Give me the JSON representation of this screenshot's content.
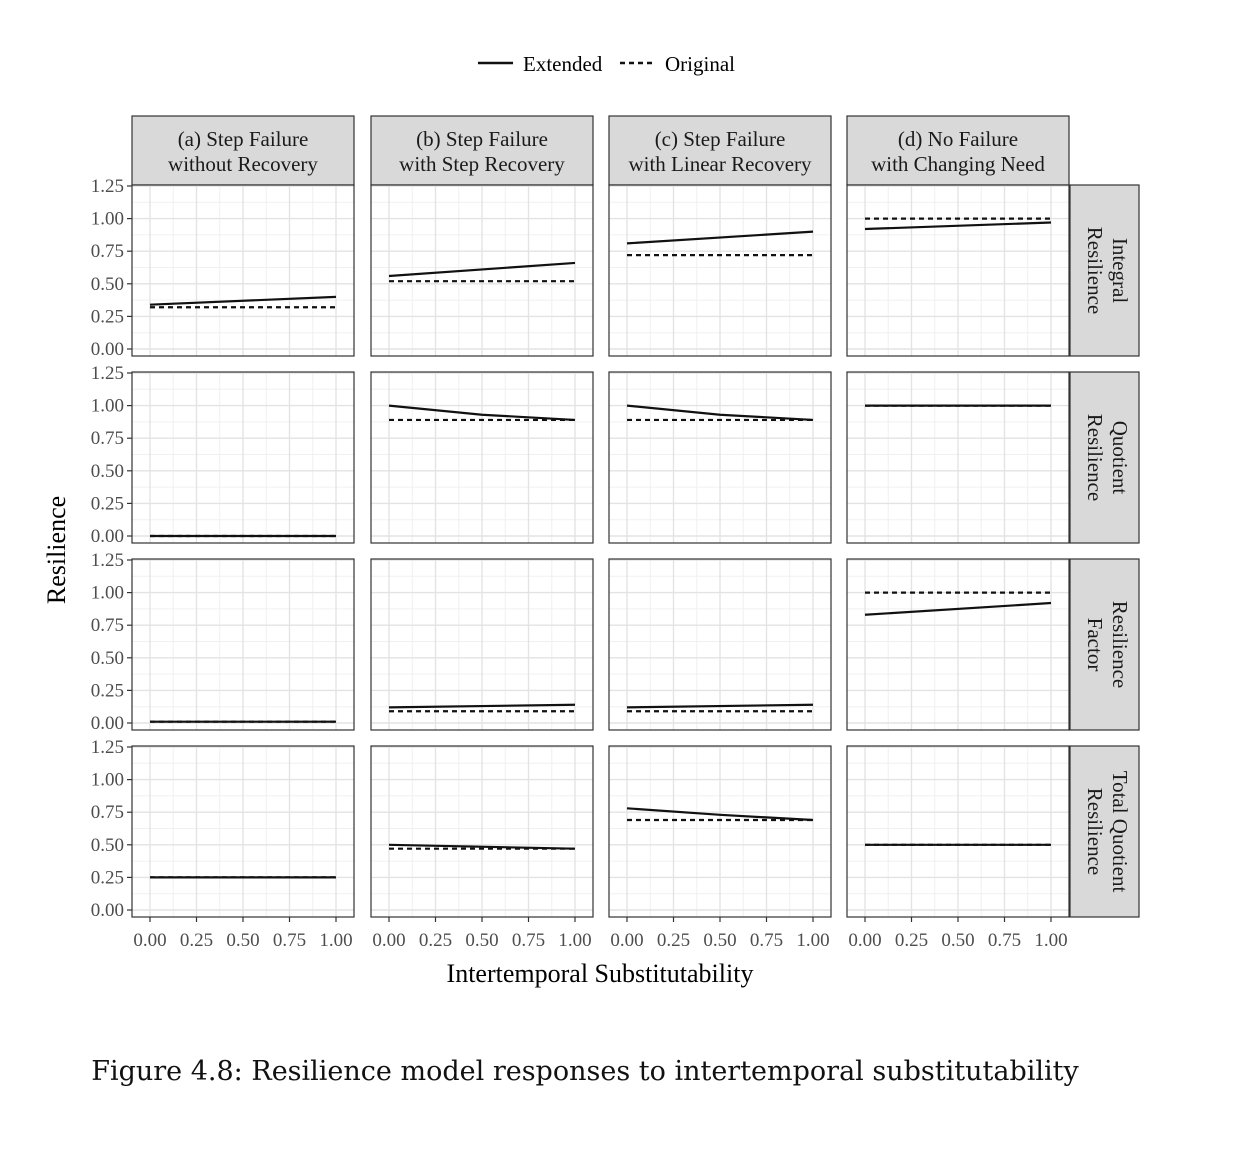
{
  "caption": "Figure 4.8: Resilience model responses to intertemporal substitutability",
  "chart_data": {
    "type": "line",
    "facets": "grid",
    "xlabel": "Intertemporal Substitutability",
    "ylabel": "Resilience",
    "xlim": [
      0,
      1
    ],
    "ylim": [
      0,
      1.25
    ],
    "x_ticks": [
      "0.00",
      "0.25",
      "0.50",
      "0.75",
      "1.00"
    ],
    "y_ticks": [
      "0.00",
      "0.25",
      "0.50",
      "0.75",
      "1.00",
      "1.25"
    ],
    "grid": true,
    "legend": {
      "position": "top",
      "entries": [
        {
          "name": "Extended",
          "style": "solid"
        },
        {
          "name": "Original",
          "style": "dashed"
        }
      ]
    },
    "columns": [
      {
        "line1": "(a) Step Failure",
        "line2": "without Recovery"
      },
      {
        "line1": "(b) Step Failure",
        "line2": "with Step Recovery"
      },
      {
        "line1": "(c) Step Failure",
        "line2": "with Linear Recovery"
      },
      {
        "line1": "(d) No Failure",
        "line2": "with Changing Need"
      }
    ],
    "rows": [
      {
        "line1": "Integral",
        "line2": "Resilience"
      },
      {
        "line1": "Quotient",
        "line2": "Resilience"
      },
      {
        "line1": "Resilience",
        "line2": "Factor"
      },
      {
        "line1": "Total Quotient",
        "line2": "Resilience"
      }
    ],
    "panels": [
      [
        {
          "Extended": [
            [
              0,
              0.34
            ],
            [
              1,
              0.4
            ]
          ],
          "Original": [
            [
              0,
              0.32
            ],
            [
              1,
              0.32
            ]
          ]
        },
        {
          "Extended": [
            [
              0,
              0.56
            ],
            [
              1,
              0.66
            ]
          ],
          "Original": [
            [
              0,
              0.52
            ],
            [
              1,
              0.52
            ]
          ]
        },
        {
          "Extended": [
            [
              0,
              0.81
            ],
            [
              1,
              0.9
            ]
          ],
          "Original": [
            [
              0,
              0.72
            ],
            [
              1,
              0.72
            ]
          ]
        },
        {
          "Extended": [
            [
              0,
              0.92
            ],
            [
              1,
              0.97
            ]
          ],
          "Original": [
            [
              0,
              1.0
            ],
            [
              1,
              1.0
            ]
          ]
        }
      ],
      [
        {
          "Extended": [
            [
              0,
              0.0
            ],
            [
              1,
              0.0
            ]
          ],
          "Original": [
            [
              0,
              0.0
            ],
            [
              1,
              0.0
            ]
          ]
        },
        {
          "Extended": [
            [
              0,
              1.0
            ],
            [
              0.5,
              0.93
            ],
            [
              1,
              0.89
            ]
          ],
          "Original": [
            [
              0,
              0.89
            ],
            [
              1,
              0.89
            ]
          ]
        },
        {
          "Extended": [
            [
              0,
              1.0
            ],
            [
              0.5,
              0.93
            ],
            [
              1,
              0.89
            ]
          ],
          "Original": [
            [
              0,
              0.89
            ],
            [
              1,
              0.89
            ]
          ]
        },
        {
          "Extended": [
            [
              0,
              1.0
            ],
            [
              1,
              1.0
            ]
          ],
          "Original": [
            [
              0,
              1.0
            ],
            [
              1,
              1.0
            ]
          ]
        }
      ],
      [
        {
          "Extended": [
            [
              0,
              0.01
            ],
            [
              1,
              0.01
            ]
          ],
          "Original": [
            [
              0,
              0.01
            ],
            [
              1,
              0.01
            ]
          ]
        },
        {
          "Extended": [
            [
              0,
              0.12
            ],
            [
              1,
              0.14
            ]
          ],
          "Original": [
            [
              0,
              0.09
            ],
            [
              1,
              0.09
            ]
          ]
        },
        {
          "Extended": [
            [
              0,
              0.12
            ],
            [
              1,
              0.14
            ]
          ],
          "Original": [
            [
              0,
              0.09
            ],
            [
              1,
              0.09
            ]
          ]
        },
        {
          "Extended": [
            [
              0,
              0.83
            ],
            [
              1,
              0.92
            ]
          ],
          "Original": [
            [
              0,
              1.0
            ],
            [
              1,
              1.0
            ]
          ]
        }
      ],
      [
        {
          "Extended": [
            [
              0,
              0.25
            ],
            [
              1,
              0.25
            ]
          ],
          "Original": [
            [
              0,
              0.25
            ],
            [
              1,
              0.25
            ]
          ]
        },
        {
          "Extended": [
            [
              0,
              0.5
            ],
            [
              1,
              0.47
            ]
          ],
          "Original": [
            [
              0,
              0.47
            ],
            [
              1,
              0.47
            ]
          ]
        },
        {
          "Extended": [
            [
              0,
              0.78
            ],
            [
              0.5,
              0.73
            ],
            [
              1,
              0.69
            ]
          ],
          "Original": [
            [
              0,
              0.69
            ],
            [
              1,
              0.69
            ]
          ]
        },
        {
          "Extended": [
            [
              0,
              0.5
            ],
            [
              1,
              0.5
            ]
          ],
          "Original": [
            [
              0,
              0.5
            ],
            [
              1,
              0.5
            ]
          ]
        }
      ]
    ]
  }
}
